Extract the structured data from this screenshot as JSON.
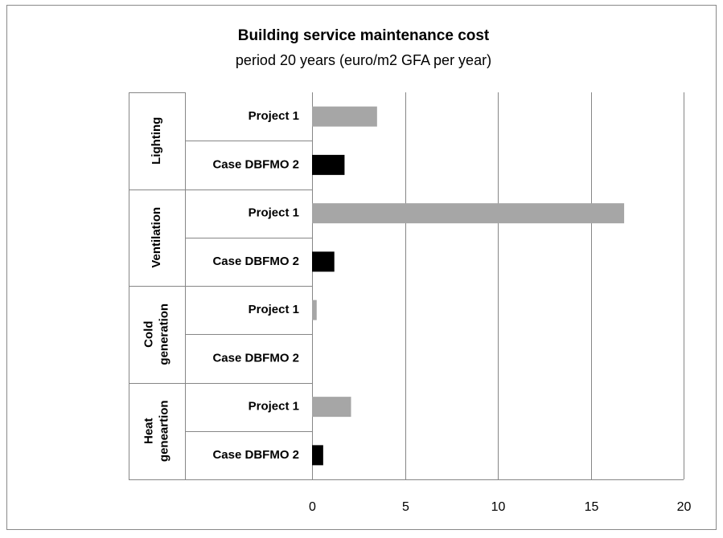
{
  "chart_data": {
    "type": "bar",
    "orientation": "horizontal",
    "title": "Building service maintenance cost",
    "subtitle": "period 20 years (euro/m2 GFA per year)",
    "categories": [
      "Lighting",
      "Ventilation",
      "Cold generation",
      "Heat geneartion"
    ],
    "series": [
      {
        "name": "Project 1",
        "color": "#a6a6a6",
        "values": [
          3.5,
          16.8,
          0.25,
          2.1
        ]
      },
      {
        "name": "Case DBFMO 2",
        "color": "#000000",
        "values": [
          1.75,
          1.2,
          0,
          0.6
        ]
      }
    ],
    "xlim": [
      0,
      20
    ],
    "xticks": [
      0,
      5,
      10,
      15,
      20
    ],
    "grid": true
  }
}
